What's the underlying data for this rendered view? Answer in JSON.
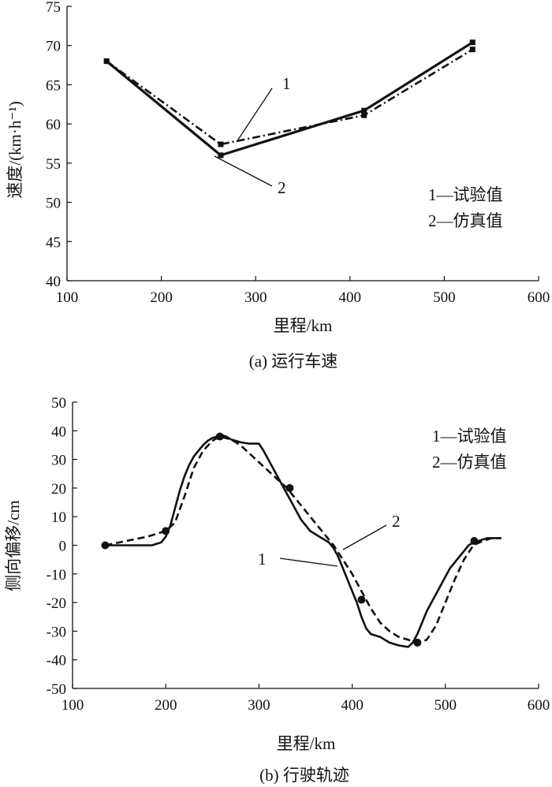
{
  "chart_data": [
    {
      "type": "line",
      "caption": "(a) 运行车速",
      "xlabel": "里程/km",
      "ylabel": "速度/(km·h⁻¹)",
      "xlim": [
        100,
        600
      ],
      "ylim": [
        40,
        75
      ],
      "xticks": [
        100,
        200,
        300,
        400,
        500,
        600
      ],
      "yticks": [
        40,
        45,
        50,
        55,
        60,
        65,
        70,
        75
      ],
      "legend": [
        "1—试验值",
        "2—仿真值"
      ],
      "annotations": [
        "1",
        "2"
      ],
      "series": [
        {
          "name": "1—试验值",
          "style": "dash-dot",
          "x": [
            142,
            263,
            415,
            530
          ],
          "y": [
            68,
            57.4,
            61.1,
            69.5
          ]
        },
        {
          "name": "2—仿真值",
          "style": "solid",
          "x": [
            142,
            263,
            415,
            530
          ],
          "y": [
            68,
            56,
            61.7,
            70.4
          ]
        }
      ]
    },
    {
      "type": "line",
      "caption": "(b) 行驶轨迹",
      "xlabel": "里程/km",
      "ylabel": "侧向偏移/cm",
      "xlim": [
        100,
        600
      ],
      "ylim": [
        -50,
        50
      ],
      "xticks": [
        100,
        200,
        300,
        400,
        500,
        600
      ],
      "yticks": [
        50,
        40,
        30,
        20,
        10,
        0,
        -10,
        -20,
        -30,
        -40,
        -50
      ],
      "legend": [
        "1—试验值",
        "2—仿真值"
      ],
      "annotations": [
        "1",
        "2"
      ],
      "series": [
        {
          "name": "1—试验值",
          "style": "solid",
          "x": [
            135,
            150,
            170,
            185,
            195,
            200,
            205,
            210,
            215,
            220,
            225,
            230,
            235,
            240,
            245,
            250,
            255,
            260,
            265,
            270,
            280,
            290,
            300,
            305,
            310,
            315,
            320,
            325,
            330,
            335,
            340,
            345,
            350,
            355,
            360,
            365,
            370,
            375,
            380,
            385,
            390,
            395,
            400,
            405,
            410,
            415,
            420,
            430,
            440,
            450,
            460,
            465,
            470,
            475,
            480,
            485,
            490,
            495,
            500,
            505,
            510,
            515,
            520,
            525,
            530,
            535,
            540,
            545,
            550,
            560
          ],
          "y": [
            0,
            0,
            0,
            0,
            1,
            3,
            7,
            13,
            19,
            24,
            28,
            31,
            33,
            35,
            36.5,
            37.5,
            38,
            38.5,
            38,
            37,
            36,
            35.5,
            35.5,
            33,
            30,
            27,
            24,
            21,
            18,
            15,
            12,
            9,
            7,
            5,
            4,
            3,
            2,
            1,
            -1,
            -4,
            -8,
            -12,
            -16,
            -20,
            -25,
            -29,
            -31,
            -32,
            -34,
            -35,
            -35.5,
            -34,
            -31,
            -27,
            -23,
            -20,
            -17,
            -14,
            -11,
            -8,
            -6,
            -4,
            -2,
            0,
            1,
            1.5,
            2,
            2.5,
            2.5,
            2.5
          ]
        },
        {
          "name": "2—仿真值",
          "style": "dashed",
          "x": [
            135,
            150,
            165,
            180,
            190,
            200,
            210,
            220,
            230,
            240,
            250,
            258,
            270,
            280,
            290,
            300,
            310,
            320,
            330,
            340,
            350,
            360,
            370,
            380,
            390,
            400,
            410,
            420,
            430,
            440,
            450,
            460,
            470,
            480,
            490,
            500,
            510,
            520,
            530,
            540,
            550,
            560
          ],
          "y": [
            0,
            1,
            2,
            3,
            4,
            5,
            8,
            17,
            27,
            33,
            36.5,
            38,
            37,
            35,
            32,
            29,
            26,
            23,
            20,
            16,
            12,
            8,
            4,
            0,
            -5,
            -10,
            -16,
            -22,
            -27,
            -30,
            -32,
            -33,
            -34,
            -33,
            -28,
            -20,
            -12,
            -5,
            0,
            1.5,
            2.5,
            2.5
          ]
        }
      ],
      "markers": {
        "x": [
          135,
          200,
          258,
          333,
          410,
          470,
          531
        ],
        "y": [
          0,
          5,
          38,
          20,
          -19,
          -34,
          1.5
        ]
      }
    }
  ]
}
